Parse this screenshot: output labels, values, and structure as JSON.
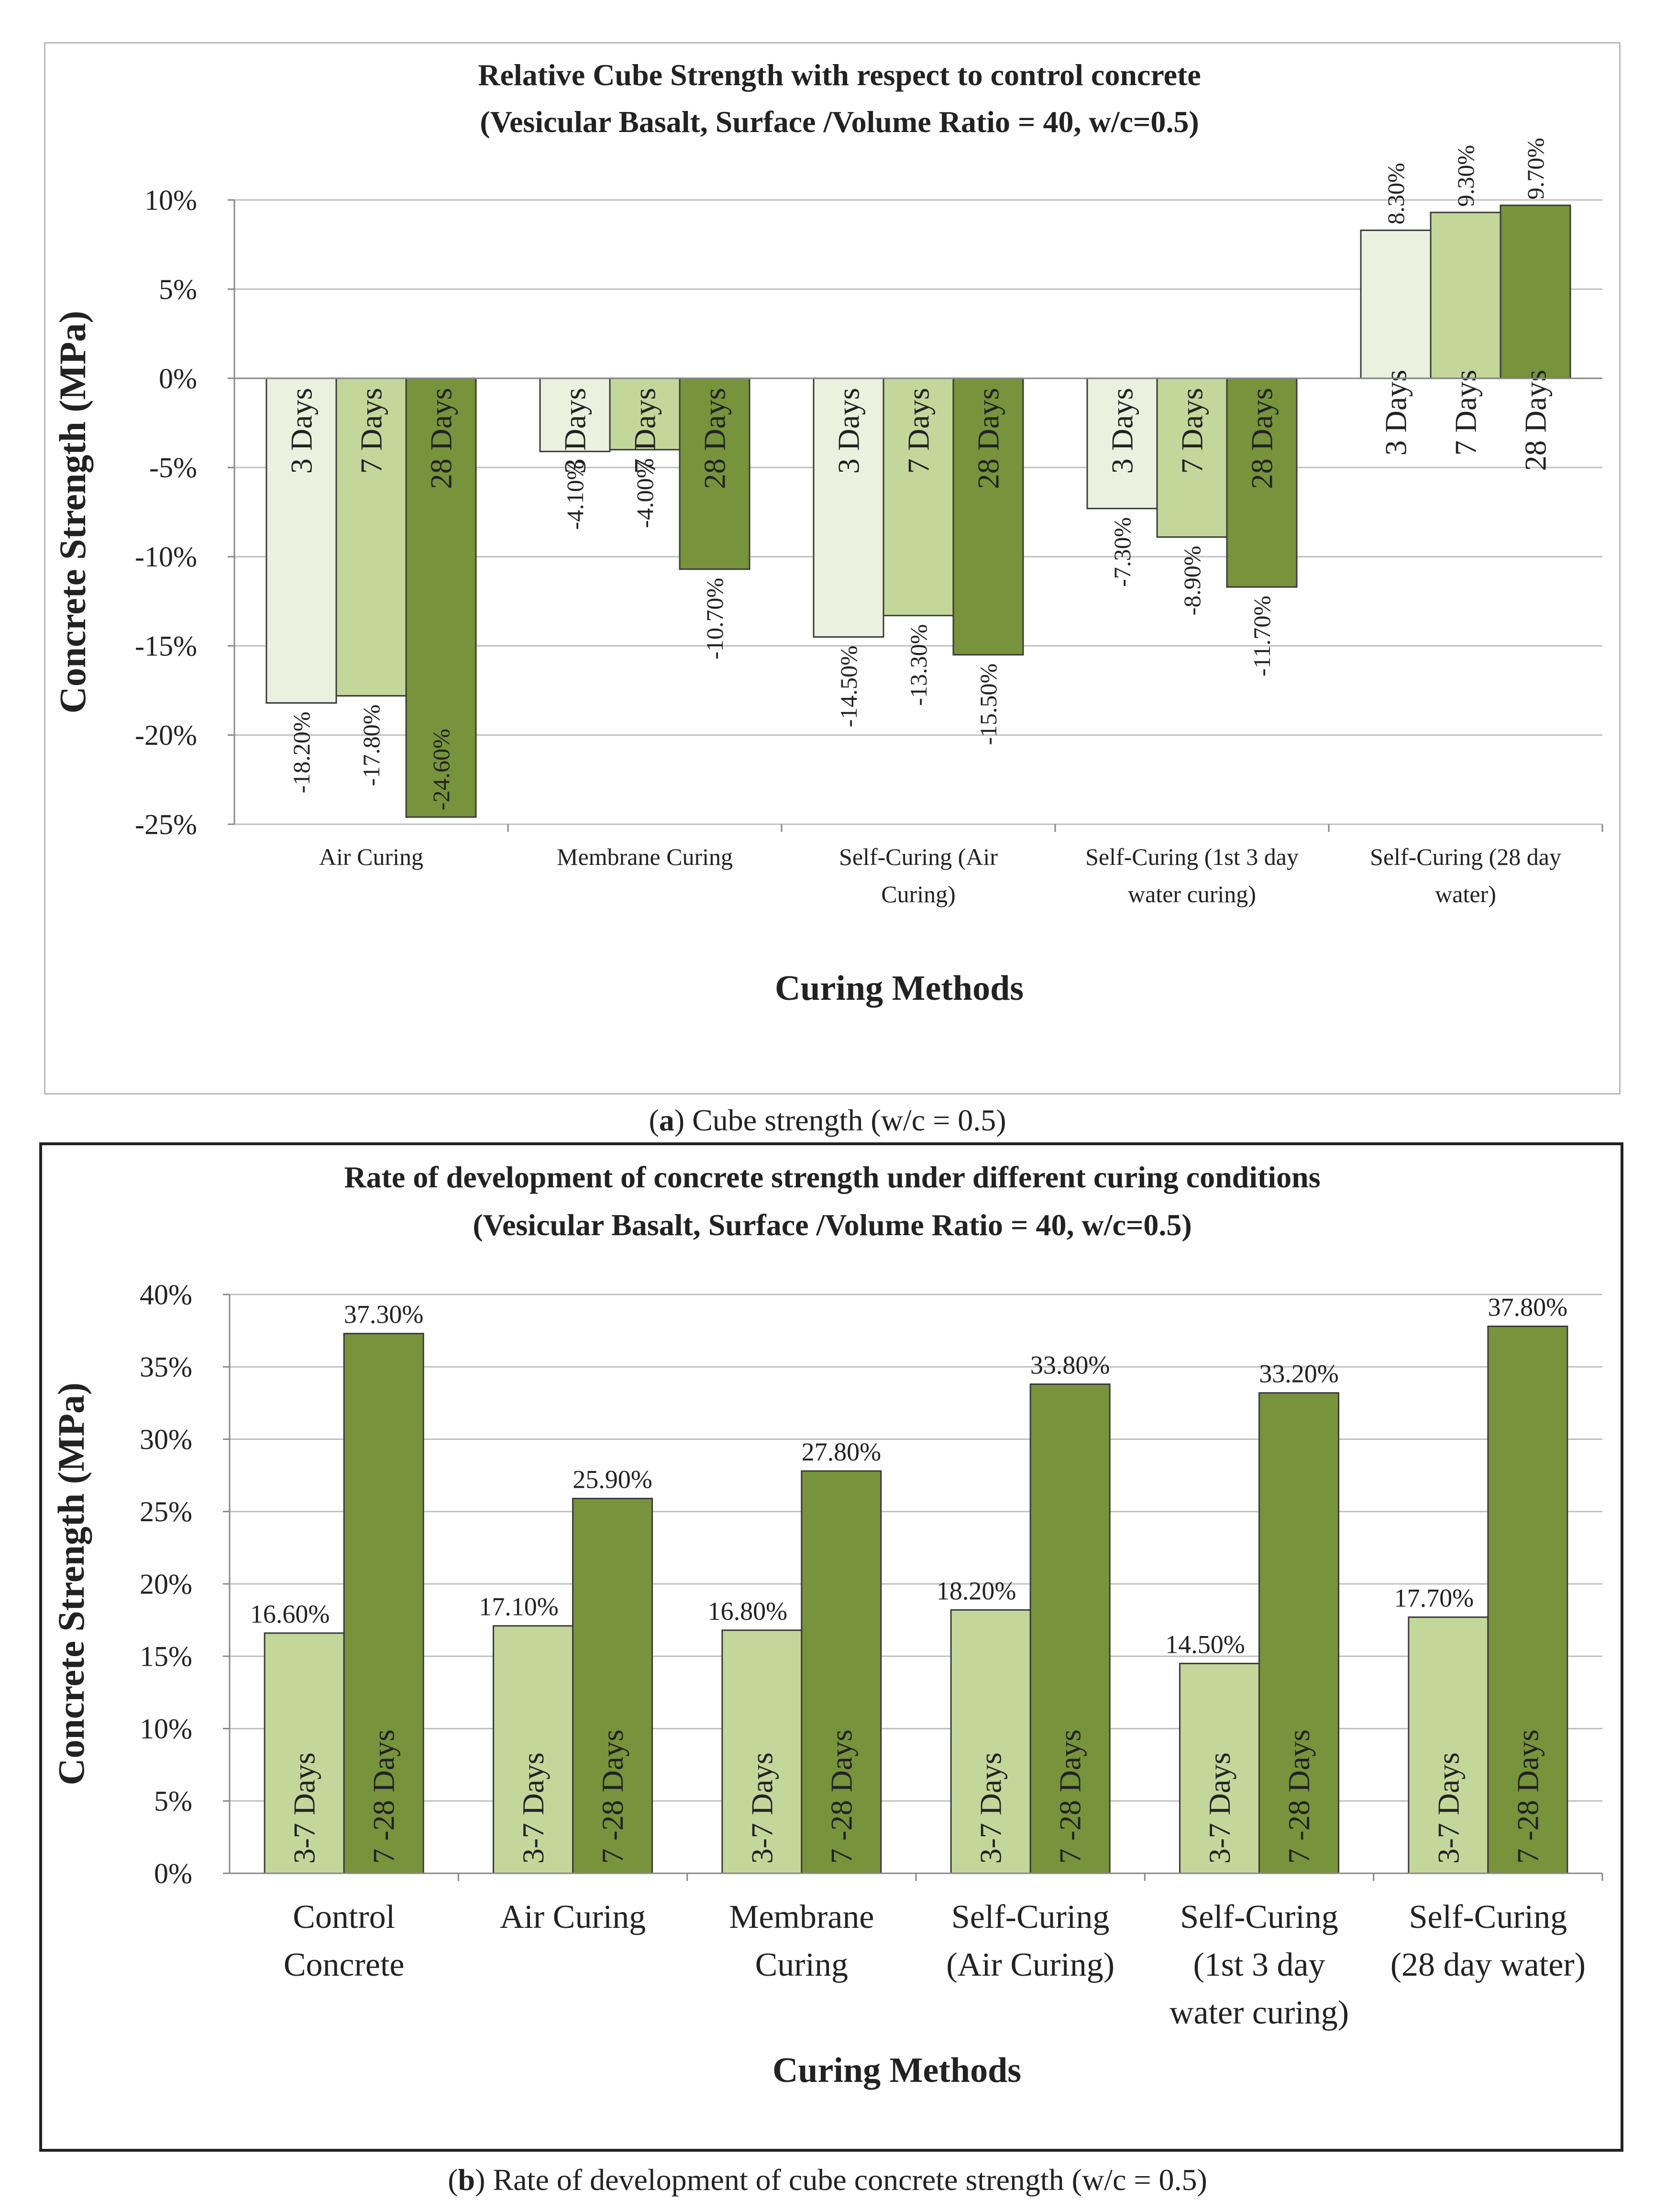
{
  "captions": {
    "a": {
      "letter": "a",
      "text": " Cube strength (w/c = 0.5)"
    },
    "b": {
      "letter": "b",
      "text": " Rate of development of cube concrete strength (w/c = 0.5)"
    }
  },
  "colors": {
    "three_day": "#ebf1de",
    "seven_day": "#c4d79b",
    "twentyeight_day": "#77933c",
    "grid": "#bfbfbf",
    "bar_stroke": "#3a3a3a"
  },
  "chart_data": [
    {
      "id": "a",
      "type": "bar",
      "title": "Relative Cube Strength with respect to control concrete",
      "subtitle": "(Vesicular Basalt, Surface /Volume Ratio = 40, w/c=0.5)",
      "xlabel": "Curing Methods",
      "ylabel": "Concrete Strength (MPa)",
      "ylim": [
        -25,
        10
      ],
      "yticks": [
        10,
        5,
        0,
        -5,
        -10,
        -15,
        -20,
        -25
      ],
      "ytick_labels": [
        "10%",
        "5%",
        "0%",
        "-5%",
        "-10%",
        "-15%",
        "-20%",
        "-25%"
      ],
      "grid": true,
      "categories": [
        [
          "Air Curing"
        ],
        [
          "Membrane Curing"
        ],
        [
          "Self-Curing (Air",
          "Curing)"
        ],
        [
          "Self-Curing (1st 3 day",
          "water curing)"
        ],
        [
          "Self-Curing  (28 day",
          "water)"
        ]
      ],
      "series": [
        {
          "name": "3 Days",
          "values": [
            -18.2,
            -4.1,
            -14.5,
            -7.3,
            8.3
          ],
          "labels": [
            "-18.20%",
            "-4.10%",
            "-14.50%",
            "-7.30%",
            "8.30%"
          ]
        },
        {
          "name": "7 Days",
          "values": [
            -17.8,
            -4.0,
            -13.3,
            -8.9,
            9.3
          ],
          "labels": [
            "-17.80%",
            "-4.00%",
            "-13.30%",
            "-8.90%",
            "9.30%"
          ]
        },
        {
          "name": "28 Days",
          "values": [
            -24.6,
            -10.7,
            -15.5,
            -11.7,
            9.7
          ],
          "labels": [
            "-24.60%",
            "-10.70%",
            "-15.50%",
            "-11.70%",
            "9.70%"
          ]
        }
      ]
    },
    {
      "id": "b",
      "type": "bar",
      "title": "Rate of development of concrete strength under different curing conditions",
      "subtitle": "(Vesicular Basalt, Surface /Volume Ratio = 40, w/c=0.5)",
      "xlabel": "Curing Methods",
      "ylabel": "Concrete Strength (MPa)",
      "ylim": [
        0,
        40
      ],
      "yticks": [
        40,
        35,
        30,
        25,
        20,
        15,
        10,
        5,
        0
      ],
      "ytick_labels": [
        "40%",
        "35%",
        "30%",
        "25%",
        "20%",
        "15%",
        "10%",
        "5%",
        "0%"
      ],
      "grid": true,
      "categories": [
        [
          "Control",
          "Concrete"
        ],
        [
          "Air Curing"
        ],
        [
          "Membrane",
          "Curing"
        ],
        [
          "Self-Curing",
          "(Air Curing)"
        ],
        [
          "Self-Curing",
          "(1st 3 day",
          "water curing)"
        ],
        [
          "Self-Curing",
          "(28 day water)"
        ]
      ],
      "series": [
        {
          "name": "3-7 Days",
          "values": [
            16.6,
            17.1,
            16.8,
            18.2,
            14.5,
            17.7
          ],
          "labels": [
            "16.60%",
            "17.10%",
            "16.80%",
            "18.20%",
            "14.50%",
            "17.70%"
          ]
        },
        {
          "name": "7 -28 Days",
          "values": [
            37.3,
            25.9,
            27.8,
            33.8,
            33.2,
            37.8
          ],
          "labels": [
            "37.30%",
            "25.90%",
            "27.80%",
            "33.80%",
            "33.20%",
            "37.80%"
          ]
        }
      ]
    }
  ]
}
